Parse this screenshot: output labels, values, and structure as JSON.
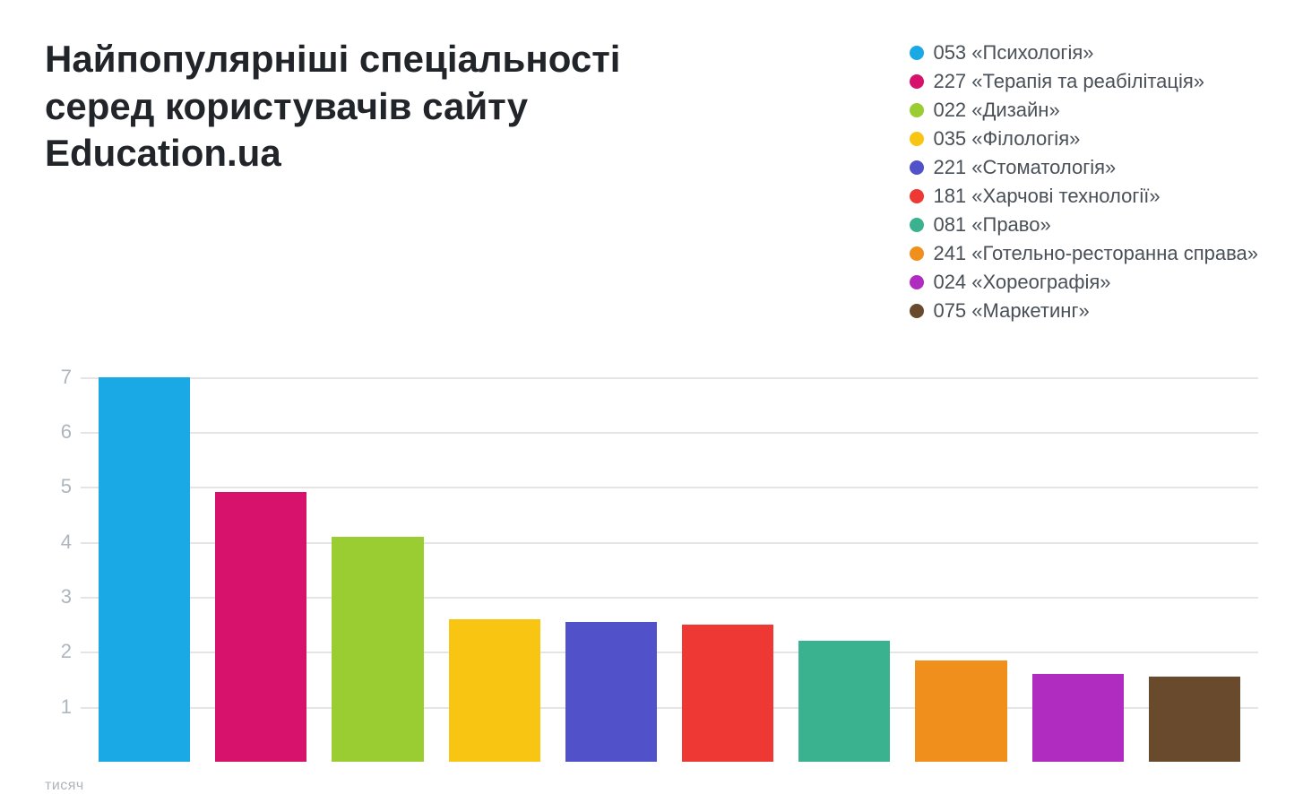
{
  "title": "Найпопулярніші спеціальності серед користувачів сайту Education.ua",
  "chart": {
    "type": "bar",
    "ylim": [
      0,
      7.5
    ],
    "yticks": [
      1,
      2,
      3,
      4,
      5,
      6,
      7
    ],
    "axis_unit_label": "тисяч",
    "grid_color": "#e5e5e5",
    "tick_label_color": "#adb5bd",
    "background_color": "#ffffff",
    "gridline_width": 2,
    "bar_gap": 28,
    "series": [
      {
        "label": "053 «Психологія»",
        "value": 7.0,
        "color": "#1ba9e6"
      },
      {
        "label": "227 «Терапія та реабілітація»",
        "value": 4.9,
        "color": "#d6126c"
      },
      {
        "label": "022 «Дизайн»",
        "value": 4.1,
        "color": "#9acd32"
      },
      {
        "label": "035 «Філологія»",
        "value": 2.6,
        "color": "#f9c513"
      },
      {
        "label": "221 «Стоматологія»",
        "value": 2.55,
        "color": "#5151c9"
      },
      {
        "label": "181 «Харчові технології»",
        "value": 2.5,
        "color": "#ed3833"
      },
      {
        "label": "081 «Право»",
        "value": 2.2,
        "color": "#3bb28f"
      },
      {
        "label": "241 «Готельно-ресторанна справа»",
        "value": 1.85,
        "color": "#f18f1c"
      },
      {
        "label": "024 «Хореографія»",
        "value": 1.6,
        "color": "#b02cc0"
      },
      {
        "label": "075 «Маркетинг»",
        "value": 1.55,
        "color": "#6a4a2c"
      }
    ]
  },
  "typography": {
    "title_fontsize": 42,
    "title_fontweight": 700,
    "title_color": "#212529",
    "legend_fontsize": 22,
    "legend_color": "#495057",
    "tick_fontsize": 22,
    "axis_label_fontsize": 16
  }
}
